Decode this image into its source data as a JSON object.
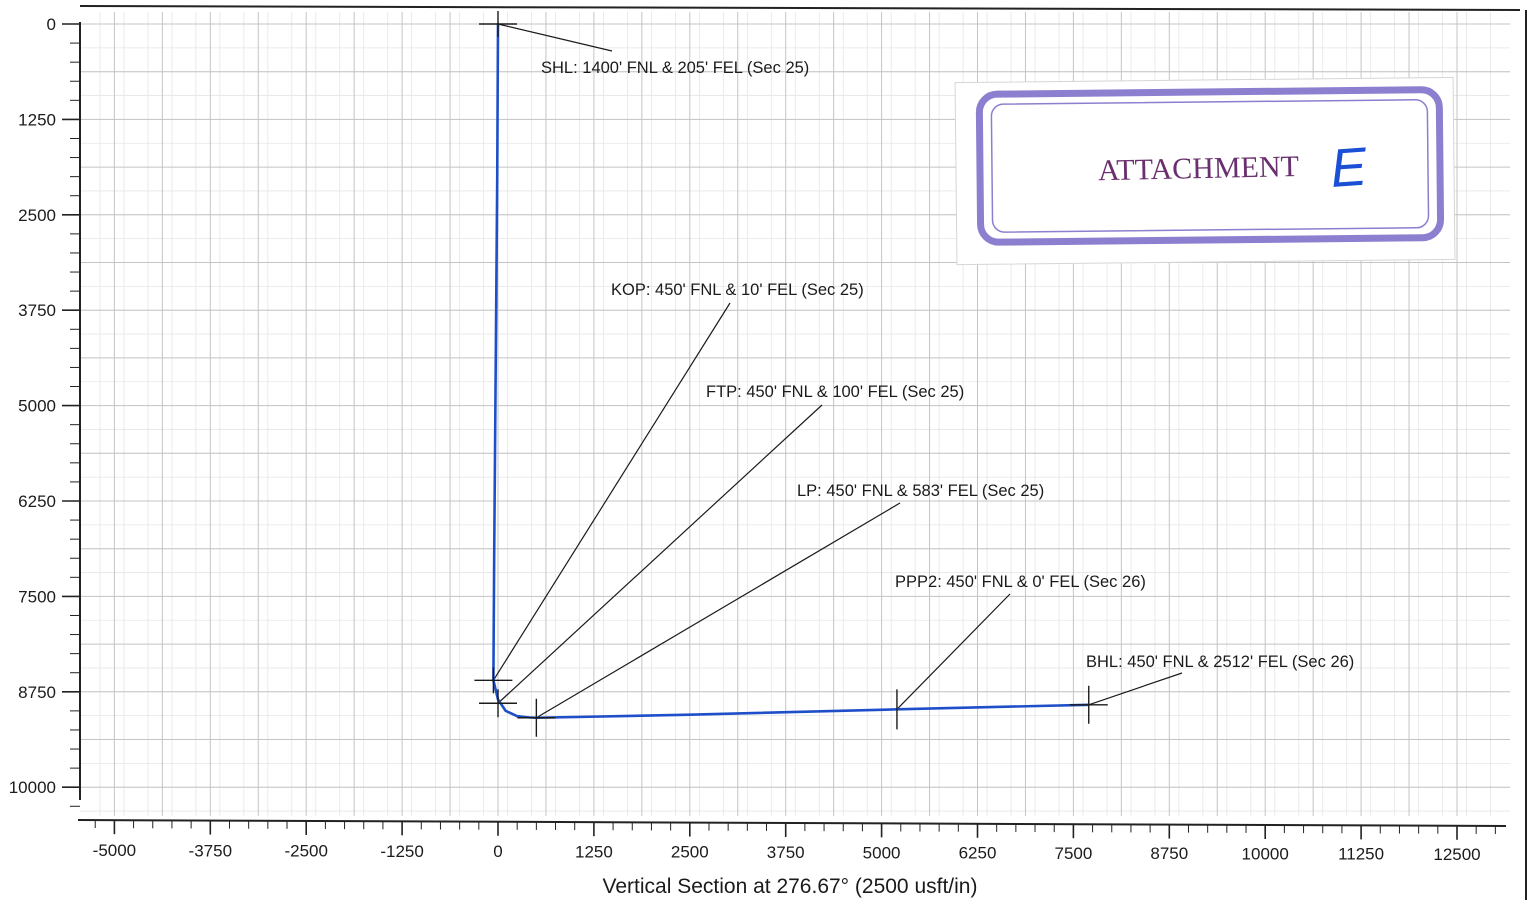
{
  "chart_data": {
    "type": "line",
    "xlabel": "Vertical Section at 276.67° (2500 usft/in)",
    "ylabel": "",
    "x_ticks": [
      -5000,
      -3750,
      -2500,
      -1250,
      0,
      1250,
      2500,
      3750,
      5000,
      6250,
      7500,
      8750,
      10000,
      11250,
      12500
    ],
    "y_ticks": [
      0,
      1250,
      2500,
      3750,
      5000,
      6250,
      7500,
      8750,
      10000
    ],
    "xlim": [
      -5500,
      13000
    ],
    "ylim": [
      0,
      10500
    ],
    "y_inverted": true,
    "grid": true,
    "series": [
      {
        "color": "#1f4fc8",
        "x": [
          0,
          -10,
          -30,
          -50,
          -60,
          0,
          100,
          250,
          400,
          500,
          2500,
          5200,
          7700
        ],
        "y": [
          0,
          2000,
          4500,
          7000,
          8600,
          8850,
          9000,
          9070,
          9085,
          9090,
          9050,
          8980,
          8920
        ]
      }
    ],
    "markers": [
      {
        "label": "SHL: 1400' FNL & 205' FEL (Sec 25)",
        "x": 0,
        "y": 0
      },
      {
        "label": "KOP: 450' FNL & 10' FEL (Sec 25)",
        "x": -60,
        "y": 8600
      },
      {
        "label": "FTP: 450' FNL & 100' FEL (Sec 25)",
        "x": 0,
        "y": 8900
      },
      {
        "label": "LP: 450' FNL & 583' FEL (Sec 25)",
        "x": 500,
        "y": 9090
      },
      {
        "label": "PPP2: 450' FNL & 0' FEL (Sec 26)",
        "x": 5200,
        "y": 8980
      },
      {
        "label": "BHL: 450' FNL & 2512' FEL (Sec 26)",
        "x": 7700,
        "y": 8920
      }
    ]
  },
  "stamp": {
    "text": "ATTACHMENT",
    "handwritten": "E",
    "border_color": "#8c7fd0",
    "text_color": "#6a2f6e",
    "ink_color": "#1a4fd6"
  }
}
